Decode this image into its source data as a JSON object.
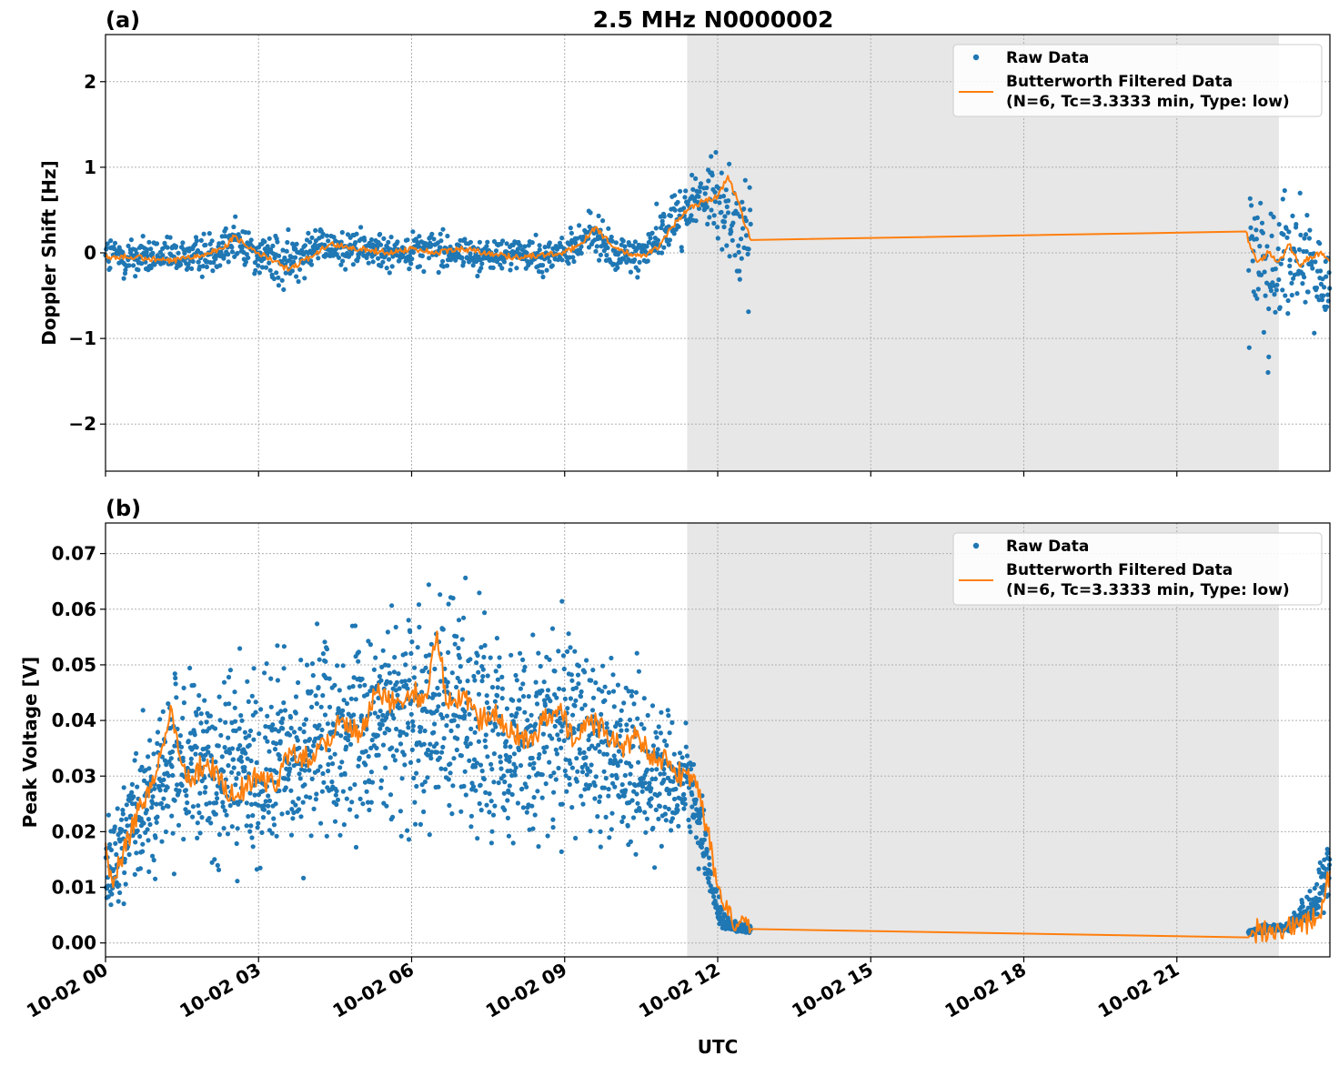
{
  "figure": {
    "title": "2.5 MHz N0000002",
    "xlabel": "UTC",
    "x_tick_labels": [
      "10-02 00",
      "10-02 03",
      "10-02 06",
      "10-02 09",
      "10-02 12",
      "10-02 15",
      "10-02 18",
      "10-02 21"
    ],
    "colors": {
      "raw": "#1f77b4",
      "filtered": "#ff7f0e",
      "night_shading": "#e7e7e7",
      "grid": "#b0b0b0"
    },
    "night_shading_hours": [
      11.4,
      23.0
    ]
  },
  "chart_data": [
    {
      "panel_label": "(a)",
      "type": "scatter",
      "ylabel": "Doppler Shift [Hz]",
      "xlim_hours": [
        0,
        24
      ],
      "ylim": [
        -2.55,
        2.55
      ],
      "y_ticks": [
        -2,
        -1,
        0,
        1,
        2
      ],
      "y_tick_labels": [
        "−2",
        "−1",
        "0",
        "1",
        "2"
      ],
      "legend": {
        "placement": "top-right",
        "raw_label": "Raw Data",
        "filtered_label_line1": "Butterworth Filtered Data",
        "filtered_label_line2": "(N=6, Tc=3.3333 min, Type: low)"
      },
      "series": [
        {
          "name": "Raw Data",
          "kind": "scatter",
          "segments": [
            {
              "x_hours": [
                0,
                0.5,
                1.0,
                1.5,
                2.0,
                2.5,
                3.0,
                3.5,
                4.0,
                4.5,
                5.0,
                5.5,
                6.0,
                6.5,
                7.0,
                7.5,
                8.0,
                8.5,
                9.0,
                9.5,
                10.0,
                10.5,
                11.0,
                11.5,
                12.0,
                12.2,
                12.4,
                12.65
              ],
              "center": [
                -0.05,
                -0.05,
                -0.05,
                -0.05,
                0.0,
                0.15,
                0.0,
                -0.15,
                0.1,
                0.05,
                0.05,
                0.0,
                0.05,
                0.05,
                0.0,
                -0.05,
                0.0,
                -0.05,
                0.0,
                0.25,
                -0.05,
                0.0,
                0.3,
                0.6,
                0.65,
                0.55,
                0.2,
                0.05
              ],
              "spread": [
                0.3,
                0.3,
                0.25,
                0.25,
                0.3,
                0.3,
                0.3,
                0.35,
                0.3,
                0.25,
                0.25,
                0.25,
                0.25,
                0.25,
                0.22,
                0.22,
                0.22,
                0.22,
                0.22,
                0.3,
                0.25,
                0.3,
                0.35,
                0.45,
                0.55,
                0.6,
                0.7,
                0.9
              ]
            },
            {
              "x_hours": [
                22.4,
                22.6,
                22.9,
                23.2,
                23.6,
                24.0
              ],
              "center": [
                0.2,
                -0.1,
                -0.2,
                0.0,
                -0.2,
                -0.4
              ],
              "spread": [
                1.2,
                1.1,
                1.0,
                0.8,
                0.6,
                0.5
              ]
            }
          ]
        },
        {
          "name": "Butterworth Filtered Data",
          "kind": "line",
          "x_hours": [
            0,
            0.5,
            1.0,
            1.3,
            1.6,
            2.0,
            2.3,
            2.55,
            2.8,
            3.0,
            3.3,
            3.6,
            4.0,
            4.4,
            4.7,
            5.0,
            5.5,
            6.0,
            6.5,
            7.0,
            7.5,
            8.0,
            8.5,
            9.0,
            9.3,
            9.6,
            9.9,
            10.2,
            10.5,
            10.8,
            11.1,
            11.4,
            11.7,
            12.0,
            12.2,
            12.4,
            12.55,
            12.65,
            22.35,
            22.45,
            22.6,
            22.8,
            23.0,
            23.2,
            23.4,
            23.6,
            23.8,
            24.0
          ],
          "y": [
            -0.05,
            -0.05,
            -0.08,
            -0.1,
            -0.05,
            0.0,
            0.05,
            0.2,
            0.05,
            0.0,
            -0.1,
            -0.2,
            -0.05,
            0.1,
            0.08,
            0.05,
            0.0,
            0.05,
            0.0,
            0.05,
            0.0,
            -0.05,
            -0.03,
            0.0,
            0.1,
            0.3,
            0.1,
            0.0,
            -0.05,
            0.05,
            0.3,
            0.5,
            0.6,
            0.65,
            0.9,
            0.6,
            0.3,
            0.15,
            0.25,
            0.05,
            -0.1,
            0.0,
            -0.1,
            0.1,
            -0.15,
            -0.05,
            0.0,
            -0.1
          ]
        }
      ]
    },
    {
      "panel_label": "(b)",
      "type": "scatter",
      "ylabel": "Peak Voltage [V]",
      "xlim_hours": [
        0,
        24
      ],
      "ylim": [
        -0.0025,
        0.0755
      ],
      "y_ticks": [
        0.0,
        0.01,
        0.02,
        0.03,
        0.04,
        0.05,
        0.06,
        0.07
      ],
      "y_tick_labels": [
        "0.00",
        "0.01",
        "0.02",
        "0.03",
        "0.04",
        "0.05",
        "0.06",
        "0.07"
      ],
      "legend": {
        "placement": "top-right",
        "raw_label": "Raw Data",
        "filtered_label_line1": "Butterworth Filtered Data",
        "filtered_label_line2": "(N=6, Tc=3.3333 min, Type: low)"
      },
      "series": [
        {
          "name": "Raw Data",
          "kind": "scatter",
          "segments": [
            {
              "x_hours": [
                0,
                0.3,
                0.8,
                1.3,
                2.0,
                3.0,
                4.0,
                5.0,
                6.0,
                6.5,
                7.0,
                8.0,
                9.0,
                10.0,
                10.5,
                11.0,
                11.4,
                11.7,
                11.9,
                12.1,
                12.3,
                12.5,
                12.65
              ],
              "center": [
                0.012,
                0.018,
                0.025,
                0.032,
                0.03,
                0.032,
                0.035,
                0.038,
                0.042,
                0.043,
                0.04,
                0.038,
                0.037,
                0.034,
                0.033,
                0.03,
                0.03,
                0.02,
                0.009,
                0.004,
                0.003,
                0.0025,
                0.0025
              ],
              "spread": [
                0.008,
                0.012,
                0.015,
                0.017,
                0.018,
                0.019,
                0.019,
                0.02,
                0.022,
                0.023,
                0.021,
                0.021,
                0.022,
                0.02,
                0.018,
                0.014,
                0.01,
                0.007,
                0.004,
                0.002,
                0.0012,
                0.001,
                0.001
              ]
            },
            {
              "x_hours": [
                22.4,
                22.8,
                23.2,
                23.5,
                23.7,
                23.9,
                24.0
              ],
              "center": [
                0.002,
                0.0025,
                0.003,
                0.005,
                0.007,
                0.011,
                0.016
              ],
              "spread": [
                0.0008,
                0.0008,
                0.001,
                0.003,
                0.004,
                0.006,
                0.008
              ]
            }
          ]
        },
        {
          "name": "Butterworth Filtered Data",
          "kind": "line",
          "x_hours": [
            0,
            0.15,
            0.3,
            0.5,
            0.7,
            0.9,
            1.1,
            1.3,
            1.5,
            1.7,
            2.0,
            2.3,
            2.6,
            3.0,
            3.3,
            3.6,
            4.0,
            4.3,
            4.6,
            5.0,
            5.3,
            5.6,
            6.0,
            6.3,
            6.5,
            6.7,
            7.0,
            7.3,
            7.6,
            8.0,
            8.3,
            8.6,
            8.9,
            9.2,
            9.5,
            9.8,
            10.1,
            10.4,
            10.7,
            11.0,
            11.3,
            11.6,
            11.8,
            12.0,
            12.2,
            12.4,
            12.65,
            22.4,
            22.5,
            22.8,
            23.1,
            23.4,
            23.6,
            23.8,
            23.9,
            24.0
          ],
          "y": [
            0.018,
            0.01,
            0.015,
            0.02,
            0.025,
            0.028,
            0.035,
            0.042,
            0.032,
            0.03,
            0.033,
            0.028,
            0.027,
            0.03,
            0.028,
            0.035,
            0.033,
            0.036,
            0.04,
            0.037,
            0.045,
            0.043,
            0.045,
            0.044,
            0.056,
            0.043,
            0.045,
            0.04,
            0.042,
            0.038,
            0.036,
            0.04,
            0.042,
            0.036,
            0.04,
            0.038,
            0.035,
            0.037,
            0.034,
            0.033,
            0.03,
            0.029,
            0.02,
            0.01,
            0.005,
            0.003,
            0.0025,
            0.001,
            0.002,
            0.0025,
            0.0025,
            0.003,
            0.004,
            0.005,
            0.008,
            0.013
          ]
        }
      ]
    }
  ]
}
